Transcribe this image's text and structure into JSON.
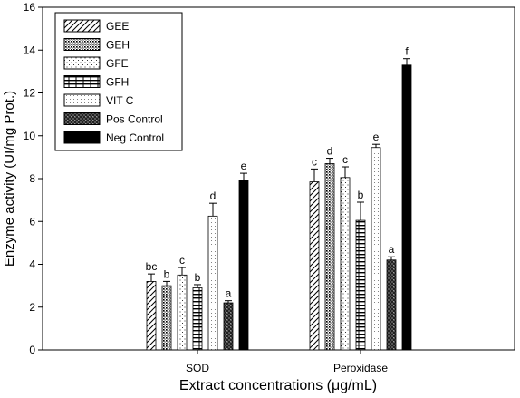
{
  "chart_data": {
    "type": "bar",
    "title": "",
    "xlabel": "Extract concentrations (μg/mL)",
    "ylabel": "Enzyme activity (UI/mg Prot.)",
    "ylim": [
      0,
      16
    ],
    "yticks": [
      0,
      2,
      4,
      6,
      8,
      10,
      12,
      14,
      16
    ],
    "grid": false,
    "legend_position": "top-left",
    "categories": [
      "SOD",
      "Peroxidase"
    ],
    "series": [
      {
        "name": "GEE",
        "pattern": "diagonal-hatch",
        "values": [
          3.2,
          7.85
        ],
        "errors": [
          0.35,
          0.6
        ],
        "labels": [
          "bc",
          "c"
        ]
      },
      {
        "name": "GEH",
        "pattern": "dense-dots",
        "values": [
          3.0,
          8.7
        ],
        "errors": [
          0.2,
          0.25
        ],
        "labels": [
          "b",
          "d"
        ]
      },
      {
        "name": "GFE",
        "pattern": "sparse-dots",
        "values": [
          3.5,
          8.05
        ],
        "errors": [
          0.35,
          0.5
        ],
        "labels": [
          "c",
          "c"
        ]
      },
      {
        "name": "GFH",
        "pattern": "horizontal-lines",
        "values": [
          2.9,
          6.05
        ],
        "errors": [
          0.15,
          0.85
        ],
        "labels": [
          "b",
          "b"
        ]
      },
      {
        "name": "VIT C",
        "pattern": "fine-dots",
        "values": [
          6.25,
          9.45
        ],
        "errors": [
          0.6,
          0.15
        ],
        "labels": [
          "d",
          "e"
        ]
      },
      {
        "name": "Pos Control",
        "pattern": "crosshatch-dark",
        "values": [
          2.2,
          4.2
        ],
        "errors": [
          0.1,
          0.15
        ],
        "labels": [
          "a",
          "a"
        ]
      },
      {
        "name": "Neg Control",
        "pattern": "solid-black",
        "values": [
          7.9,
          13.3
        ],
        "errors": [
          0.35,
          0.3
        ],
        "labels": [
          "e",
          "f"
        ]
      }
    ]
  }
}
